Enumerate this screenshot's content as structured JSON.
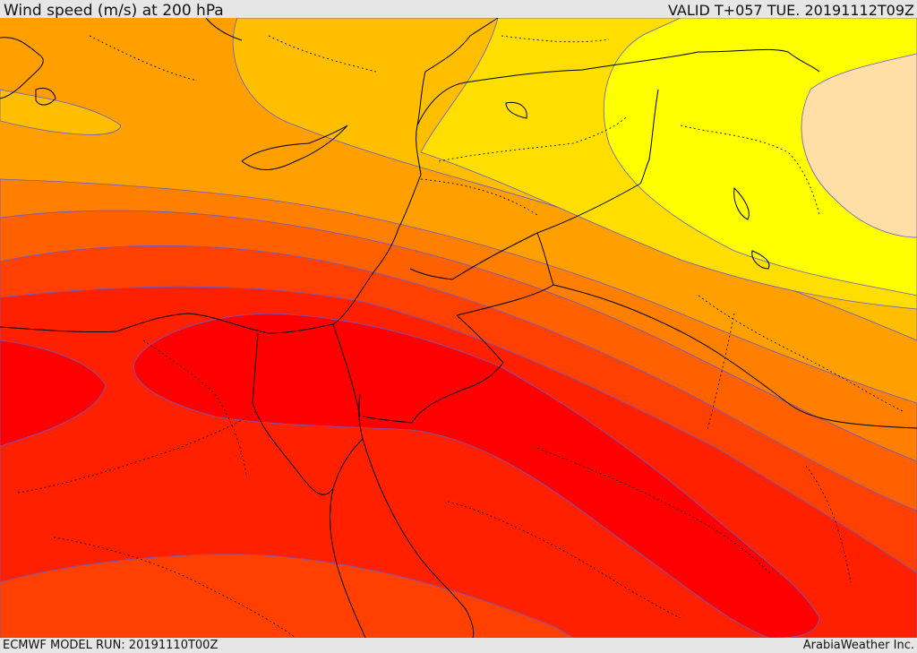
{
  "header": {
    "title": "Wind speed (m/s) at 200 hPa",
    "valid": "VALID T+057 TUE. 20191112T09Z"
  },
  "footer": {
    "model_run": "ECMWF MODEL RUN: 20191110T00Z",
    "credit": "ArabiaWeather Inc."
  },
  "map": {
    "type": "filled-contour wind speed",
    "level": "200 hPa",
    "units": "m/s",
    "colors": {
      "band_1": "#ffdfa6",
      "band_2": "#ffff00",
      "band_3": "#ffde00",
      "band_4": "#ffbf00",
      "band_5": "#ff9f00",
      "band_6": "#ff7f00",
      "band_7": "#ff6000",
      "band_8": "#ff4000",
      "band_9": "#ff2000",
      "band_10": "#ff0000",
      "contour_line": "#6a5acd",
      "coastline": "#000000",
      "border": "#000000"
    }
  }
}
